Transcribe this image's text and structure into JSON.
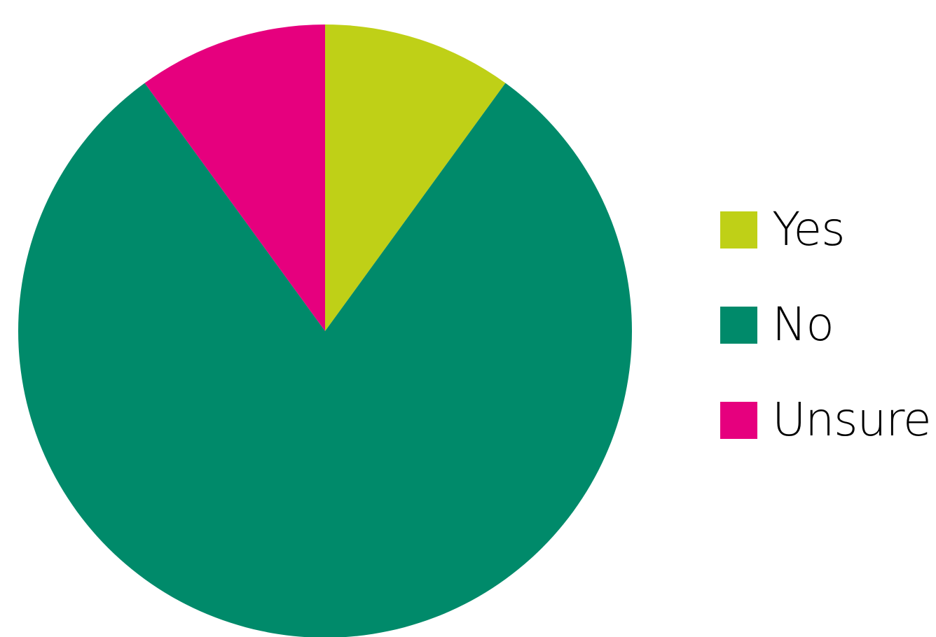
{
  "chart_data": {
    "type": "pie",
    "title": "",
    "categories": [
      "Yes",
      "No",
      "Unsure"
    ],
    "values": [
      10,
      80,
      10
    ],
    "colors": [
      "#bfd017",
      "#008a6a",
      "#e6007e"
    ],
    "start_angle_deg": 0,
    "direction": "clockwise",
    "legend_position": "right"
  }
}
